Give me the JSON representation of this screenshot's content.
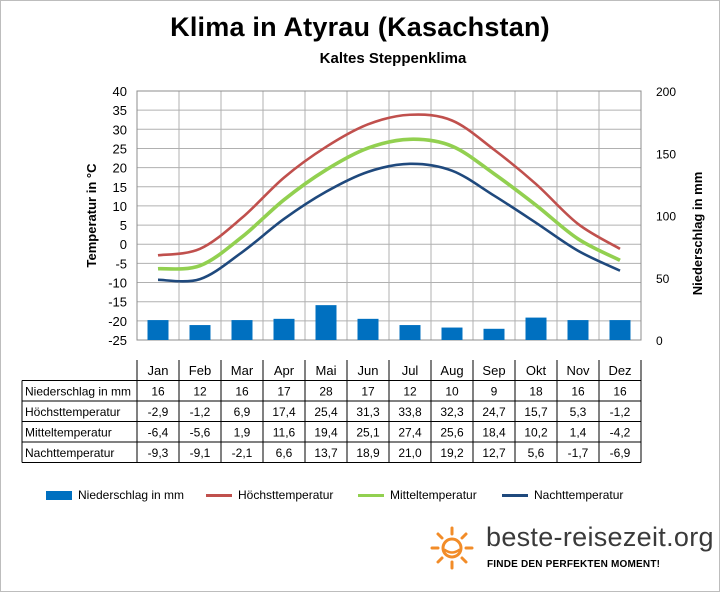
{
  "title": "Klima in Atyrau (Kasachstan)",
  "subtitle": "Kaltes Steppenklima",
  "colors": {
    "precip": "#0070c0",
    "max": "#c0504d",
    "mean": "#92d050",
    "min": "#1f497d",
    "grid": "#b0b0b0",
    "logo": "#f28c28"
  },
  "chart_data": {
    "type": "bar+line",
    "categories": [
      "Jan",
      "Feb",
      "Mar",
      "Apr",
      "Mai",
      "Jun",
      "Jul",
      "Aug",
      "Sep",
      "Okt",
      "Nov",
      "Dez"
    ],
    "y_left": {
      "label": "Temperatur in °C",
      "ylim": [
        -25,
        40
      ],
      "ticks": [
        "40",
        "35",
        "30",
        "25",
        "20",
        "15",
        "10",
        "5",
        "0",
        "-5",
        "-10",
        "-15",
        "-20",
        "-25"
      ]
    },
    "y_right": {
      "label": "Niederschlag in mm",
      "ylim": [
        0,
        200
      ],
      "ticks": [
        "200",
        "150",
        "100",
        "50",
        "0"
      ]
    },
    "grid": true,
    "series": [
      {
        "name": "Niederschlag in mm",
        "kind": "bar",
        "axis": "right",
        "values": [
          16,
          12,
          16,
          17,
          28,
          17,
          12,
          10,
          9,
          18,
          16,
          16
        ],
        "labels": [
          "16",
          "12",
          "16",
          "17",
          "28",
          "17",
          "12",
          "10",
          "9",
          "18",
          "16",
          "16"
        ]
      },
      {
        "name": "Höchsttemperatur",
        "kind": "line",
        "axis": "left",
        "values": [
          -2.9,
          -1.2,
          6.9,
          17.4,
          25.4,
          31.3,
          33.8,
          32.3,
          24.7,
          15.7,
          5.3,
          -1.2
        ],
        "labels": [
          "-2,9",
          "-1,2",
          "6,9",
          "17,4",
          "25,4",
          "31,3",
          "33,8",
          "32,3",
          "24,7",
          "15,7",
          "5,3",
          "-1,2"
        ]
      },
      {
        "name": "Mitteltemperatur",
        "kind": "line",
        "axis": "left",
        "values": [
          -6.4,
          -5.6,
          1.9,
          11.6,
          19.4,
          25.1,
          27.4,
          25.6,
          18.4,
          10.2,
          1.4,
          -4.2
        ],
        "labels": [
          "-6,4",
          "-5,6",
          "1,9",
          "11,6",
          "19,4",
          "25,1",
          "27,4",
          "25,6",
          "18,4",
          "10,2",
          "1,4",
          "-4,2"
        ]
      },
      {
        "name": "Nachttemperatur",
        "kind": "line",
        "axis": "left",
        "values": [
          -9.3,
          -9.1,
          -2.1,
          6.6,
          13.7,
          18.9,
          21.0,
          19.2,
          12.7,
          5.6,
          -1.7,
          -6.9
        ],
        "labels": [
          "-9,3",
          "-9,1",
          "-2,1",
          "6,6",
          "13,7",
          "18,9",
          "21,0",
          "19,2",
          "12,7",
          "5,6",
          "-1,7",
          "-6,9"
        ]
      }
    ],
    "legend_position": "bottom"
  },
  "brand": {
    "name": "beste-reisezeit.org",
    "tagline": "FINDE DEN PERFEKTEN MOMENT!",
    "logo_icon": "sun-icon"
  }
}
